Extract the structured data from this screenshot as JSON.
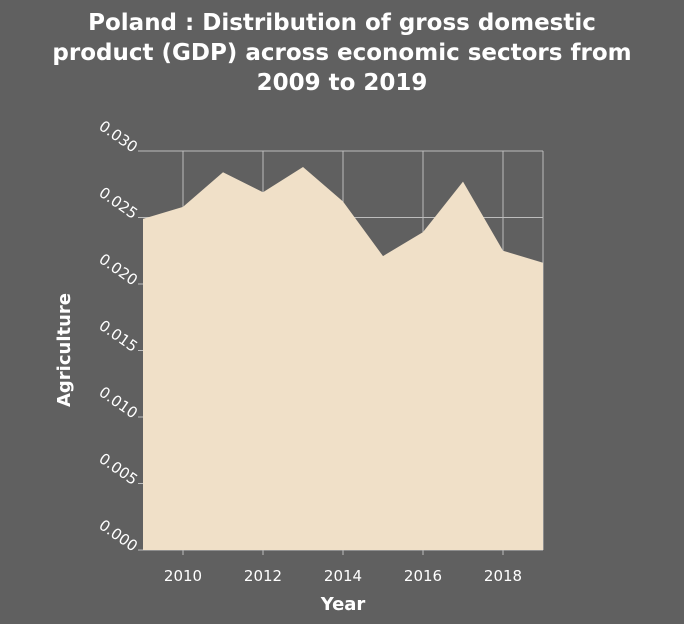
{
  "chart_data": {
    "type": "area",
    "title_lines": [
      "Poland : Distribution of gross domestic",
      "product (GDP) across economic sectors from",
      "2009 to 2019"
    ],
    "xlabel": "Year",
    "ylabel": "Agriculture",
    "x_ticks": [
      2010,
      2012,
      2014,
      2016,
      2018
    ],
    "y_ticks": [
      "0.000",
      "0.005",
      "0.010",
      "0.015",
      "0.020",
      "0.025",
      "0.030"
    ],
    "xlim": [
      2009,
      2019
    ],
    "ylim": [
      0,
      0.03
    ],
    "grid": true,
    "x": [
      2009,
      2010,
      2011,
      2012,
      2013,
      2014,
      2015,
      2016,
      2017,
      2018,
      2019
    ],
    "values": [
      0.0249,
      0.0258,
      0.0284,
      0.0269,
      0.0288,
      0.0262,
      0.0221,
      0.0239,
      0.0277,
      0.0225,
      0.0216
    ],
    "colors": {
      "background": "#606060",
      "fill": "#f0e0c8",
      "grid": "#bdbdbd",
      "text": "#ffffff"
    }
  }
}
